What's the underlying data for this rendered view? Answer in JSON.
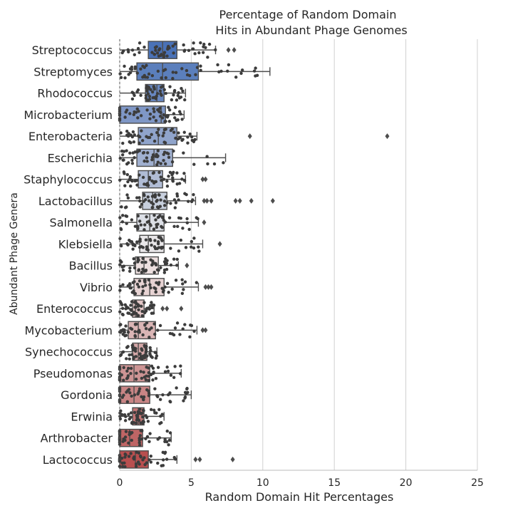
{
  "chart_data": {
    "type": "box",
    "title_lines": [
      "Percentage of Random Domain",
      "Hits in Abundant Phage Genomes"
    ],
    "xlabel": "Random Domain Hit Percentages",
    "ylabel": "Abundant Phage Genera",
    "xlim": [
      0,
      25
    ],
    "xticks": [
      0,
      5,
      10,
      15,
      20,
      25
    ],
    "grid": "vertical",
    "overlay": "swarm",
    "categories": [
      {
        "name": "Streptococcus",
        "q1": 2.0,
        "median": 3.0,
        "q3": 4.0,
        "wmin": 0.0,
        "wmax": 6.7,
        "outliers": [
          7.6,
          8.0
        ],
        "color": "#4a72b7"
      },
      {
        "name": "Streptomyces",
        "q1": 1.2,
        "median": 3.0,
        "q3": 5.5,
        "wmin": 0.0,
        "wmax": 10.5,
        "outliers": [],
        "color": "#5b7fbc"
      },
      {
        "name": "Rhodococcus",
        "q1": 1.8,
        "median": 2.6,
        "q3": 3.1,
        "wmin": 0.0,
        "wmax": 4.6,
        "outliers": [],
        "color": "#6887c0"
      },
      {
        "name": "Microbacterium",
        "q1": 0.0,
        "median": 2.9,
        "q3": 3.2,
        "wmin": 0.0,
        "wmax": 4.5,
        "outliers": [],
        "color": "#7f97c6"
      },
      {
        "name": "Enterobacteria",
        "q1": 1.3,
        "median": 2.7,
        "q3": 4.0,
        "wmin": 0.0,
        "wmax": 5.4,
        "outliers": [
          9.1,
          18.7
        ],
        "color": "#90a4cb"
      },
      {
        "name": "Escherichia",
        "q1": 1.2,
        "median": 2.4,
        "q3": 3.7,
        "wmin": 0.0,
        "wmax": 7.4,
        "outliers": [],
        "color": "#a0b0d0"
      },
      {
        "name": "Staphylococcus",
        "q1": 1.3,
        "median": 2.0,
        "q3": 3.0,
        "wmin": 0.0,
        "wmax": 4.6,
        "outliers": [
          5.8,
          6.0
        ],
        "color": "#b0bcd5"
      },
      {
        "name": "Lactobacillus",
        "q1": 1.6,
        "median": 2.3,
        "q3": 3.3,
        "wmin": 0.0,
        "wmax": 5.3,
        "outliers": [
          5.9,
          6.1,
          6.4,
          8.1,
          8.4,
          9.2,
          10.7
        ],
        "color": "#c7cfdd"
      },
      {
        "name": "Salmonella",
        "q1": 1.2,
        "median": 2.1,
        "q3": 3.1,
        "wmin": 0.0,
        "wmax": 5.5,
        "outliers": [
          5.9
        ],
        "color": "#dcdfe6"
      },
      {
        "name": "Klebsiella",
        "q1": 1.4,
        "median": 2.0,
        "q3": 3.1,
        "wmin": 0.0,
        "wmax": 5.8,
        "outliers": [
          7.0
        ],
        "color": "#e8e6e8"
      },
      {
        "name": "Bacillus",
        "q1": 1.1,
        "median": 1.7,
        "q3": 2.7,
        "wmin": 0.0,
        "wmax": 4.1,
        "outliers": [
          4.7
        ],
        "color": "#ecdfdf"
      },
      {
        "name": "Vibrio",
        "q1": 1.0,
        "median": 2.1,
        "q3": 3.1,
        "wmin": 0.0,
        "wmax": 5.5,
        "outliers": [
          6.0,
          6.2,
          6.4
        ],
        "color": "#e7d3d3"
      },
      {
        "name": "Enterococcus",
        "q1": 0.9,
        "median": 1.1,
        "q3": 1.7,
        "wmin": 0.0,
        "wmax": 2.4,
        "outliers": [
          3.0,
          3.3,
          4.3
        ],
        "color": "#e2c6c6"
      },
      {
        "name": "Mycobacterium",
        "q1": 0.6,
        "median": 1.3,
        "q3": 2.5,
        "wmin": 0.0,
        "wmax": 5.4,
        "outliers": [
          5.8,
          6.0
        ],
        "color": "#dab5b5"
      },
      {
        "name": "Synechococcus",
        "q1": 0.9,
        "median": 1.3,
        "q3": 1.9,
        "wmin": 0.0,
        "wmax": 2.6,
        "outliers": [],
        "color": "#d4a7a7"
      },
      {
        "name": "Pseudomonas",
        "q1": 0.0,
        "median": 1.0,
        "q3": 2.1,
        "wmin": 0.0,
        "wmax": 4.3,
        "outliers": [],
        "color": "#cd9494"
      },
      {
        "name": "Gordonia",
        "q1": 0.0,
        "median": 1.0,
        "q3": 2.1,
        "wmin": 0.0,
        "wmax": 5.0,
        "outliers": [],
        "color": "#c98585"
      },
      {
        "name": "Erwinia",
        "q1": 0.9,
        "median": 1.3,
        "q3": 1.7,
        "wmin": 0.0,
        "wmax": 3.1,
        "outliers": [],
        "color": "#c47777"
      },
      {
        "name": "Arthrobacter",
        "q1": 0.0,
        "median": 0.7,
        "q3": 1.6,
        "wmin": 0.0,
        "wmax": 3.6,
        "outliers": [],
        "color": "#bf6565"
      },
      {
        "name": "Lactococcus",
        "q1": 0.0,
        "median": 1.1,
        "q3": 2.0,
        "wmin": 0.0,
        "wmax": 4.0,
        "outliers": [
          5.3,
          5.6,
          7.9
        ],
        "color": "#b84f4f"
      }
    ]
  }
}
